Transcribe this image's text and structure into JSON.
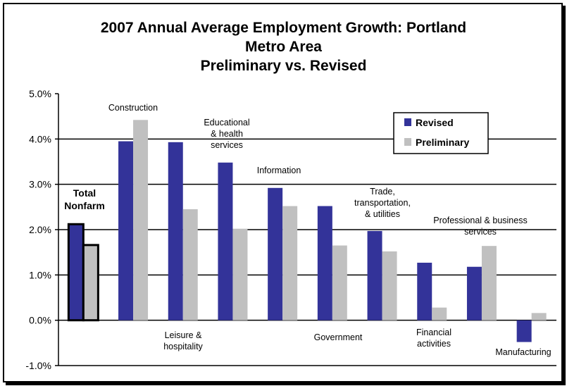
{
  "chart_data": {
    "type": "bar",
    "title_lines": [
      "2007 Annual Average Employment Growth: Portland",
      "Metro Area",
      "Preliminary vs. Revised"
    ],
    "xlabel": "",
    "ylabel": "",
    "ylim": [
      -1.0,
      5.0
    ],
    "yticks": [
      "-1.0%",
      "0.0%",
      "1.0%",
      "2.0%",
      "3.0%",
      "4.0%",
      "5.0%"
    ],
    "ytick_values": [
      -1,
      0,
      1,
      2,
      3,
      4,
      5
    ],
    "grid": true,
    "legend_position": "top-right",
    "categories": [
      {
        "label": [
          "Total",
          "Nonfarm"
        ],
        "bold": true,
        "label_pos": "above"
      },
      {
        "label": [
          "Construction"
        ],
        "label_pos": "above"
      },
      {
        "label": [
          "Leisure &",
          "hospitality"
        ],
        "label_pos": "below"
      },
      {
        "label": [
          "Educational",
          "& health",
          "services"
        ],
        "label_pos": "above"
      },
      {
        "label": [
          "Information"
        ],
        "label_pos": "above"
      },
      {
        "label": [
          "Government"
        ],
        "label_pos": "below"
      },
      {
        "label": [
          "Trade,",
          "transportation,",
          "& utilities"
        ],
        "label_pos": "above"
      },
      {
        "label": [
          "Financial",
          "activities"
        ],
        "label_pos": "below"
      },
      {
        "label": [
          "Professional & business",
          "services"
        ],
        "label_pos": "above"
      },
      {
        "label": [
          "Manufacturing"
        ],
        "label_pos": "below"
      }
    ],
    "series": [
      {
        "name": "Revised",
        "color": "#333399",
        "values": [
          2.12,
          3.95,
          3.93,
          3.48,
          2.92,
          2.52,
          1.97,
          1.27,
          1.18,
          -0.48
        ]
      },
      {
        "name": "Preliminary",
        "color": "#c0c0c0",
        "values": [
          1.66,
          4.42,
          2.45,
          2.02,
          2.52,
          1.65,
          1.52,
          0.28,
          1.64,
          0.16
        ]
      }
    ]
  }
}
